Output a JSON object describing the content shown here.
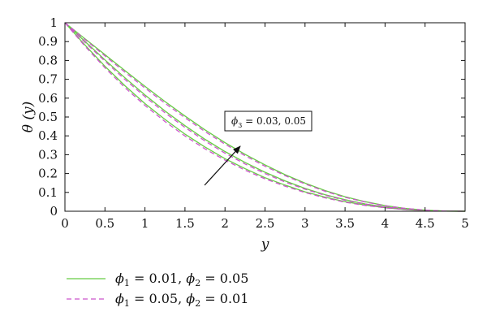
{
  "chart_data": {
    "type": "line",
    "title": "",
    "xlabel": "y",
    "ylabel": "θ (y)",
    "xlim": [
      0,
      5
    ],
    "ylim": [
      0,
      1
    ],
    "xticks": [
      "0",
      "0.5",
      "1",
      "1.5",
      "2",
      "2.5",
      "3",
      "3.5",
      "4",
      "4.5",
      "5"
    ],
    "yticks": [
      "0",
      "0.1",
      "0.2",
      "0.3",
      "0.4",
      "0.5",
      "0.6",
      "0.7",
      "0.8",
      "0.9",
      "1"
    ],
    "grid": false,
    "legend_position": "bottom-left",
    "legend": [
      {
        "style": "solid",
        "color": "#66cc44",
        "parts": [
          "ϕ",
          "1",
          " = 0.01, ",
          "ϕ",
          "2",
          " = 0.05"
        ]
      },
      {
        "style": "dashed",
        "color": "#cc55cc",
        "parts": [
          "ϕ",
          "1",
          " = 0.05, ",
          "ϕ",
          "2",
          " = 0.01"
        ]
      }
    ],
    "annotation": {
      "parts": [
        "ϕ",
        "3",
        " = 0.03, 0.05"
      ]
    },
    "x": [
      0,
      0.25,
      0.5,
      0.75,
      1,
      1.25,
      1.5,
      1.75,
      2,
      2.25,
      2.5,
      2.75,
      3,
      3.25,
      3.5,
      3.75,
      4,
      4.25,
      4.5,
      4.75,
      5
    ],
    "series": [
      {
        "style": "solid",
        "color": "#66cc44",
        "values": [
          1.0,
          0.882,
          0.769,
          0.666,
          0.571,
          0.487,
          0.409,
          0.341,
          0.279,
          0.226,
          0.178,
          0.139,
          0.103,
          0.075,
          0.051,
          0.033,
          0.019,
          0.009,
          0.003,
          0.001,
          0.0
        ]
      },
      {
        "style": "dashed",
        "color": "#cc55cc",
        "values": [
          1.0,
          0.876,
          0.761,
          0.656,
          0.561,
          0.476,
          0.399,
          0.331,
          0.271,
          0.218,
          0.172,
          0.133,
          0.099,
          0.071,
          0.048,
          0.031,
          0.018,
          0.009,
          0.003,
          0.001,
          0.0
        ]
      },
      {
        "style": "solid",
        "color": "#66cc44",
        "values": [
          1.0,
          0.901,
          0.803,
          0.708,
          0.617,
          0.532,
          0.454,
          0.382,
          0.317,
          0.259,
          0.207,
          0.161,
          0.121,
          0.088,
          0.061,
          0.039,
          0.023,
          0.011,
          0.004,
          0.001,
          0.0
        ]
      },
      {
        "style": "dashed",
        "color": "#cc55cc",
        "values": [
          1.0,
          0.896,
          0.796,
          0.699,
          0.608,
          0.522,
          0.445,
          0.373,
          0.308,
          0.251,
          0.2,
          0.155,
          0.117,
          0.085,
          0.058,
          0.038,
          0.022,
          0.011,
          0.004,
          0.001,
          0.0
        ]
      },
      {
        "style": "solid",
        "color": "#66cc44",
        "values": [
          1.0,
          0.915,
          0.831,
          0.746,
          0.663,
          0.582,
          0.505,
          0.432,
          0.364,
          0.302,
          0.246,
          0.194,
          0.149,
          0.11,
          0.077,
          0.051,
          0.03,
          0.015,
          0.006,
          0.001,
          0.0
        ]
      },
      {
        "style": "dashed",
        "color": "#cc55cc",
        "values": [
          1.0,
          0.911,
          0.824,
          0.738,
          0.654,
          0.573,
          0.496,
          0.423,
          0.356,
          0.295,
          0.239,
          0.189,
          0.145,
          0.106,
          0.074,
          0.049,
          0.029,
          0.015,
          0.006,
          0.001,
          0.0
        ]
      }
    ]
  }
}
